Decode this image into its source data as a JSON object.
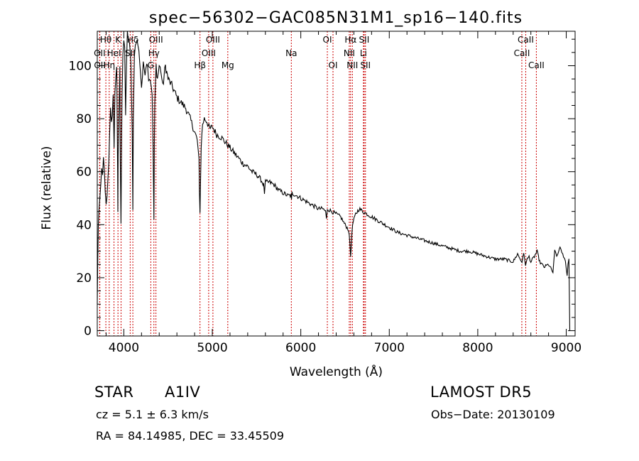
{
  "chart_data": {
    "type": "line",
    "title": "spec−56302−GAC085N31M1_sp16−140.fits",
    "xlabel": "Wavelength (Å)",
    "ylabel": "Flux (relative)",
    "xlim": [
      3700,
      9100
    ],
    "ylim": [
      -2,
      113
    ],
    "xticks": [
      4000,
      5000,
      6000,
      7000,
      8000,
      9000
    ],
    "yticks": [
      0,
      20,
      40,
      60,
      80,
      100
    ],
    "grid": false,
    "series": [
      {
        "color": "#000000",
        "x": [
          3700,
          3705,
          3712,
          3720,
          3730,
          3740,
          3750,
          3760,
          3770,
          3780,
          3790,
          3800,
          3810,
          3820,
          3830,
          3840,
          3850,
          3860,
          3870,
          3880,
          3890,
          3900,
          3910,
          3920,
          3930,
          3933,
          3936,
          3945,
          3955,
          3960,
          3968,
          3972,
          3980,
          3990,
          4000,
          4010,
          4020,
          4030,
          4040,
          4060,
          4080,
          4095,
          4102,
          4108,
          4120,
          4140,
          4160,
          4180,
          4200,
          4220,
          4240,
          4260,
          4280,
          4300,
          4320,
          4330,
          4340,
          4345,
          4350,
          4365,
          4380,
          4400,
          4420,
          4440,
          4470,
          4500,
          4550,
          4600,
          4650,
          4700,
          4750,
          4800,
          4830,
          4850,
          4855,
          4861,
          4866,
          4875,
          4890,
          4910,
          4940,
          4970,
          5000,
          5050,
          5100,
          5150,
          5200,
          5250,
          5300,
          5350,
          5400,
          5450,
          5500,
          5550,
          5580,
          5590,
          5600,
          5650,
          5700,
          5750,
          5800,
          5850,
          5890,
          5895,
          5900,
          5950,
          6000,
          6050,
          6100,
          6150,
          6200,
          6250,
          6280,
          6290,
          6300,
          6350,
          6400,
          6450,
          6500,
          6540,
          6555,
          6563,
          6570,
          6585,
          6620,
          6660,
          6700,
          6750,
          6800,
          6850,
          6900,
          6950,
          7000,
          7100,
          7200,
          7300,
          7400,
          7500,
          7600,
          7700,
          7800,
          7900,
          8000,
          8100,
          8200,
          8300,
          8400,
          8450,
          8480,
          8500,
          8520,
          8540,
          8560,
          8580,
          8600,
          8640,
          8670,
          8700,
          8750,
          8800,
          8850,
          8870,
          8900,
          8930,
          8950,
          8970,
          8990,
          9000,
          9010,
          9020,
          9030,
          9040
        ],
        "values": [
          10,
          25,
          40,
          45,
          50,
          55,
          62,
          58,
          65,
          60,
          52,
          48,
          50,
          58,
          63,
          75,
          85,
          78,
          80,
          88,
          70,
          90,
          95,
          100,
          60,
          45,
          65,
          80,
          100,
          65,
          40,
          60,
          90,
          105,
          110,
          107,
          80,
          100,
          112,
          110,
          100,
          75,
          45,
          80,
          105,
          110,
          108,
          102,
          92,
          100,
          98,
          102,
          96,
          95,
          90,
          70,
          42,
          70,
          85,
          100,
          95,
          100,
          98,
          92,
          100,
          95,
          92,
          88,
          86,
          84,
          80,
          75,
          72,
          64,
          52,
          45,
          54,
          70,
          78,
          80,
          79,
          76,
          77,
          74,
          73,
          71,
          69,
          67,
          65,
          63,
          62,
          60,
          59,
          57,
          55,
          52,
          56,
          56,
          55,
          53,
          52,
          51,
          51,
          49,
          52,
          51,
          50,
          49,
          48,
          47,
          46,
          46,
          45,
          42,
          46,
          45,
          44,
          43,
          40,
          38,
          33,
          28,
          32,
          40,
          44,
          46,
          45,
          44,
          43,
          42,
          41,
          40,
          39,
          37,
          36,
          35,
          34,
          33,
          32,
          31,
          30,
          30,
          29,
          28,
          27,
          27,
          26,
          29,
          27,
          26,
          29,
          25,
          27,
          28,
          26,
          28,
          30,
          26,
          24,
          25,
          22,
          30,
          28,
          32,
          29,
          28,
          26,
          24,
          21,
          25,
          27,
          0
        ]
      }
    ],
    "line_labels": [
      {
        "text": "Hθ",
        "x": 3797,
        "row": 0
      },
      {
        "text": "K",
        "x": 3934,
        "row": 0
      },
      {
        "text": "Hδ",
        "x": 4102,
        "row": 0
      },
      {
        "text": "OIII",
        "x": 4363,
        "row": 0
      },
      {
        "text": "OIII",
        "x": 5007,
        "row": 0
      },
      {
        "text": "OI",
        "x": 6300,
        "row": 0
      },
      {
        "text": "Hα",
        "x": 6563,
        "row": 0
      },
      {
        "text": "SII",
        "x": 6716,
        "row": 0
      },
      {
        "text": "CaII",
        "x": 8542,
        "row": 0
      },
      {
        "text": "OII",
        "x": 3727,
        "row": 1
      },
      {
        "text": "HeI",
        "x": 3889,
        "row": 1
      },
      {
        "text": "SII",
        "x": 4072,
        "row": 1
      },
      {
        "text": "Hγ",
        "x": 4340,
        "row": 1
      },
      {
        "text": "OIII",
        "x": 4959,
        "row": 1
      },
      {
        "text": "Na",
        "x": 5893,
        "row": 1
      },
      {
        "text": "NII",
        "x": 6548,
        "row": 1
      },
      {
        "text": "Li",
        "x": 6708,
        "row": 1
      },
      {
        "text": "CaII",
        "x": 8498,
        "row": 1
      },
      {
        "text": "OII",
        "x": 3729,
        "row": 2
      },
      {
        "text": "Hη",
        "x": 3835,
        "row": 2
      },
      {
        "text": "G",
        "x": 4305,
        "row": 2
      },
      {
        "text": "Hβ",
        "x": 4861,
        "row": 2
      },
      {
        "text": "Mg",
        "x": 5175,
        "row": 2
      },
      {
        "text": "OI",
        "x": 6364,
        "row": 2
      },
      {
        "text": "NII",
        "x": 6583,
        "row": 2
      },
      {
        "text": "SII",
        "x": 6731,
        "row": 2
      },
      {
        "text": "CaII",
        "x": 8662,
        "row": 2
      }
    ],
    "line_markers": [
      3727,
      3729,
      3797,
      3835,
      3889,
      3934,
      3969,
      4072,
      4102,
      4305,
      4340,
      4363,
      4861,
      4959,
      5007,
      5175,
      5893,
      6300,
      6364,
      6548,
      6563,
      6583,
      6708,
      6716,
      6731,
      8498,
      8542,
      8662
    ]
  },
  "info": {
    "object_class": "STAR",
    "subclass": "A1IV",
    "survey": "LAMOST DR5",
    "redshift": "cz = 5.1 ± 6.3 km/s",
    "obs_date": "Obs−Date: 20130109",
    "coords": "RA =  84.14985, DEC =  33.45509"
  },
  "colors": {
    "spectrum": "#000000",
    "markers": "#cc0000",
    "text": "#000000"
  }
}
